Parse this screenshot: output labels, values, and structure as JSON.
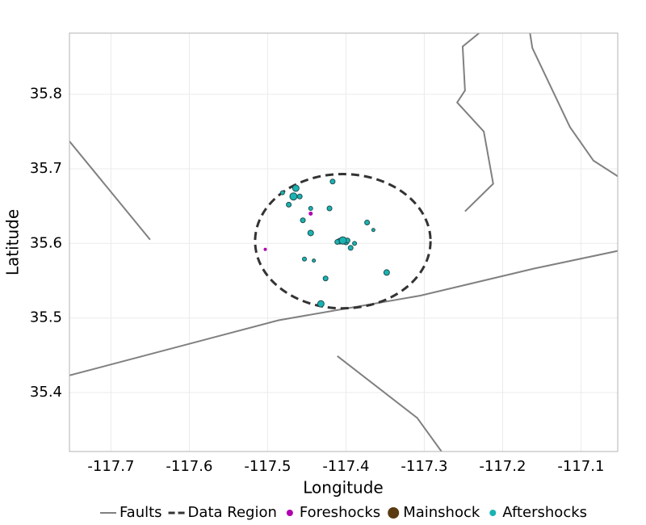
{
  "chart_data": {
    "type": "scatter",
    "xlabel": "Longitude",
    "ylabel": "Latitude",
    "xlim": [
      -117.753,
      -117.053
    ],
    "ylim": [
      35.321,
      35.882
    ],
    "xticks": [
      -117.7,
      -117.6,
      -117.5,
      -117.4,
      -117.3,
      -117.2,
      -117.1
    ],
    "yticks": [
      35.4,
      35.5,
      35.6,
      35.7,
      35.8
    ],
    "grid": true,
    "faults": {
      "name": "Faults",
      "color": "#808080",
      "lines": [
        {
          "x": [
            -117.753,
            -117.65
          ],
          "y": [
            35.737,
            35.605
          ]
        },
        {
          "x": [
            -117.753,
            -117.486,
            -117.305,
            -117.161,
            -117.053
          ],
          "y": [
            35.423,
            35.497,
            35.53,
            35.566,
            35.59
          ]
        },
        {
          "x": [
            -117.411,
            -117.309,
            -117.278
          ],
          "y": [
            35.449,
            35.366,
            35.321
          ]
        },
        {
          "x": [
            -117.248,
            -117.212,
            -117.224,
            -117.258,
            -117.248,
            -117.251,
            -117.23
          ],
          "y": [
            35.643,
            35.68,
            35.75,
            35.789,
            35.805,
            35.864,
            35.882
          ]
        },
        {
          "x": [
            -117.165,
            -117.162,
            -117.114,
            -117.084,
            -117.053
          ],
          "y": [
            35.882,
            35.862,
            35.756,
            35.711,
            35.69
          ]
        }
      ]
    },
    "region": {
      "name": "Data Region",
      "color": "#333333",
      "center_x": -117.404,
      "center_y": 35.603,
      "radius_x": 0.112,
      "radius_y": 0.09
    },
    "series": [
      {
        "name": "Foreshocks",
        "color": "#b000b0",
        "x": [
          -117.445,
          -117.503
        ],
        "y": [
          35.64,
          35.592
        ],
        "sizes": [
          2.5,
          2
        ]
      },
      {
        "name": "Mainshock",
        "color": "#5a3a10",
        "x": [
          -117.404
        ],
        "y": [
          35.604
        ],
        "sizes": [
          5
        ]
      },
      {
        "name": "Aftershocks",
        "color": "#1ab3b3",
        "x": [
          -117.464,
          -117.467,
          -117.459,
          -117.481,
          -117.473,
          -117.445,
          -117.455,
          -117.417,
          -117.421,
          -117.445,
          -117.453,
          -117.441,
          -117.426,
          -117.432,
          -117.373,
          -117.365,
          -117.348,
          -117.389,
          -117.394,
          -117.408,
          -117.411,
          -117.4,
          -117.398,
          -117.404
        ],
        "y": [
          35.674,
          35.663,
          35.663,
          35.668,
          35.652,
          35.647,
          35.631,
          35.683,
          35.647,
          35.614,
          35.579,
          35.577,
          35.553,
          35.519,
          35.628,
          35.618,
          35.561,
          35.6,
          35.594,
          35.603,
          35.602,
          35.602,
          35.604,
          35.604
        ],
        "sizes": [
          4,
          4.5,
          3,
          2.5,
          3,
          2.5,
          3,
          3,
          3,
          3.5,
          2.5,
          2,
          3,
          4,
          3,
          2,
          3.5,
          2.5,
          3,
          3.5,
          3,
          3.5,
          3,
          4.5
        ]
      }
    ]
  }
}
